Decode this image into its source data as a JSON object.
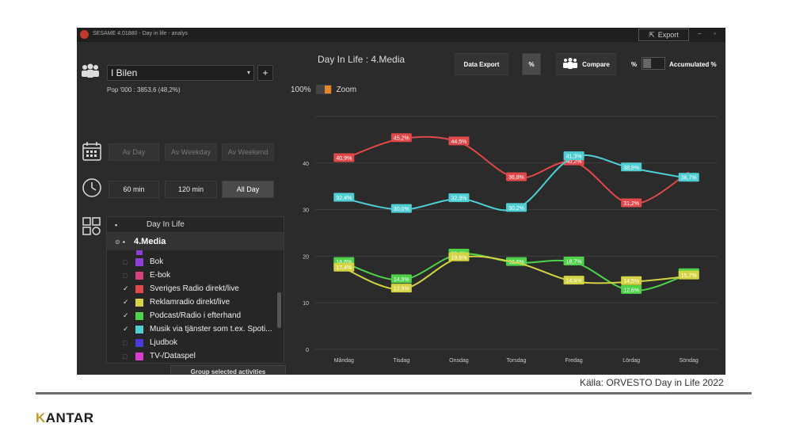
{
  "window": {
    "title": "SESAME 4.01880 - Day in life - analys",
    "export_label": "Export",
    "min": "–",
    "max": "▫"
  },
  "left": {
    "target_group": "I Bilen",
    "plus": "+",
    "population": "Pop '000 : 3853,6 (48,2%)",
    "day_buttons": [
      "Av Day",
      "Av Weekday",
      "Av Weekend"
    ],
    "time_buttons": [
      "60 min",
      "120 min",
      "All Day"
    ],
    "tree": {
      "header": "Day In Life",
      "group": "4.Media",
      "items": [
        {
          "label": "Bok",
          "checked": false,
          "color": "#8e3fd6"
        },
        {
          "label": "E-bok",
          "checked": false,
          "color": "#d6437a"
        },
        {
          "label": "Sveriges Radio direkt/live",
          "checked": true,
          "color": "#e0484a"
        },
        {
          "label": "Reklamradio direkt/live",
          "checked": true,
          "color": "#d3d343"
        },
        {
          "label": "Podcast/Radio i efterhand",
          "checked": true,
          "color": "#4fd14a"
        },
        {
          "label": "Musik via tjänster som t.ex. Spoti...",
          "checked": true,
          "color": "#4fcfd3"
        },
        {
          "label": "Ljudbok",
          "checked": false,
          "color": "#4a3ad8"
        },
        {
          "label": "TV-/Dataspel",
          "checked": false,
          "color": "#d43fd0"
        }
      ]
    },
    "group_button": "Group selected activities"
  },
  "header": {
    "title": "Day In Life : 4.Media",
    "data_export": "Data Export",
    "percent": "%",
    "compare": "Compare",
    "pct_label": "%",
    "accumulated": "Accumulated %",
    "zoom_pct": "100%",
    "zoom": "Zoom"
  },
  "chart_data": {
    "type": "line",
    "categories": [
      "Måndag",
      "Tisdag",
      "Onsdag",
      "Torsdag",
      "Fredag",
      "Lördag",
      "Söndag"
    ],
    "ylim": [
      0,
      50
    ],
    "yticks": [
      0,
      10,
      20,
      30,
      40
    ],
    "series": [
      {
        "name": "Sveriges Radio direkt/live",
        "color": "#e0484a",
        "values": [
          40.9,
          45.2,
          44.5,
          36.8,
          40.2,
          31.2,
          38.0
        ]
      },
      {
        "name": "Musik via tjänster som t.ex. Spoti...",
        "color": "#4fcfd3",
        "values": [
          32.4,
          30.0,
          32.3,
          30.2,
          41.3,
          38.9,
          36.7
        ]
      },
      {
        "name": "Podcast/Radio i efterhand",
        "color": "#4fd14a",
        "values": [
          18.6,
          14.9,
          20.4,
          18.6,
          18.7,
          12.6,
          16.2
        ]
      },
      {
        "name": "Reklamradio direkt/live",
        "color": "#d3d343",
        "values": [
          17.4,
          12.9,
          19.6,
          18.6,
          14.6,
          14.5,
          15.7
        ]
      }
    ],
    "value_labels": [
      [
        "40,9%",
        "45,2%",
        "44,5%",
        "36,8%",
        "40,2%",
        "31,2%",
        ""
      ],
      [
        "32,4%",
        "30,0%",
        "32,3%",
        "30,2%",
        "41,3%",
        "38,9%",
        "36,7%"
      ],
      [
        "18,6%",
        "14,9%",
        "20,4%",
        "18,6%",
        "18,7%",
        "12,6%",
        "16,2%"
      ],
      [
        "17,4%",
        "12,9%",
        "19,6%",
        "",
        "14,6%",
        "14,5%",
        "15,7%"
      ]
    ]
  },
  "footer": {
    "source": "Källa: ORVESTO Day in Life 2022",
    "brand_k": "K",
    "brand_rest": "ANTAR"
  }
}
